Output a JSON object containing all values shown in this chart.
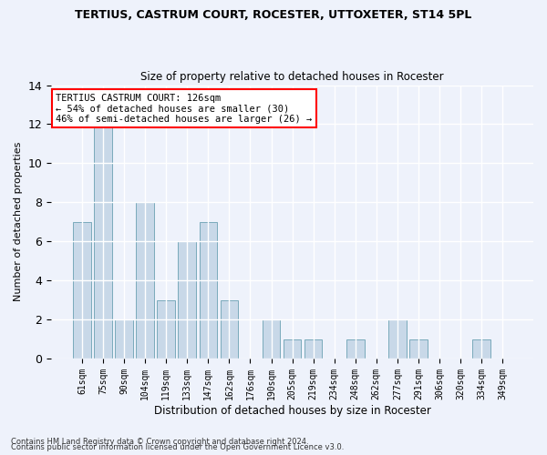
{
  "title": "TERTIUS, CASTRUM COURT, ROCESTER, UTTOXETER, ST14 5PL",
  "subtitle": "Size of property relative to detached houses in Rocester",
  "xlabel": "Distribution of detached houses by size in Rocester",
  "ylabel": "Number of detached properties",
  "categories": [
    "61sqm",
    "75sqm",
    "90sqm",
    "104sqm",
    "119sqm",
    "133sqm",
    "147sqm",
    "162sqm",
    "176sqm",
    "190sqm",
    "205sqm",
    "219sqm",
    "234sqm",
    "248sqm",
    "262sqm",
    "277sqm",
    "291sqm",
    "306sqm",
    "320sqm",
    "334sqm",
    "349sqm"
  ],
  "values": [
    7,
    12,
    2,
    8,
    3,
    6,
    7,
    3,
    0,
    2,
    1,
    1,
    0,
    1,
    0,
    2,
    1,
    0,
    0,
    1,
    0
  ],
  "bar_color": "#c8d8e8",
  "bar_edge_color": "#7aaabb",
  "annotation_text": "TERTIUS CASTRUM COURT: 126sqm\n← 54% of detached houses are smaller (30)\n46% of semi-detached houses are larger (26) →",
  "annotation_box_color": "white",
  "annotation_box_edge_color": "red",
  "ylim": [
    0,
    14
  ],
  "yticks": [
    0,
    2,
    4,
    6,
    8,
    10,
    12,
    14
  ],
  "bg_color": "#eef2fb",
  "grid_color": "white",
  "footer_line1": "Contains HM Land Registry data © Crown copyright and database right 2024.",
  "footer_line2": "Contains public sector information licensed under the Open Government Licence v3.0."
}
